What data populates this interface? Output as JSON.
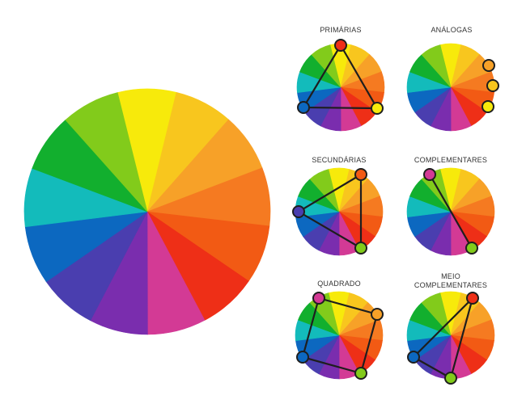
{
  "wheel_colors": [
    "#F7EA0B",
    "#F8C61E",
    "#F7A128",
    "#F57A21",
    "#F25A14",
    "#EE2F17",
    "#D33A95",
    "#7A2DAE",
    "#4A3EAF",
    "#0C68C0",
    "#13BBBB",
    "#12AF2E",
    "#82CB1B"
  ],
  "harmonies": [
    {
      "id": "primarias",
      "label": "PRIMÁRIAS",
      "handles": [
        0,
        4,
        8
      ],
      "shape": "polygon"
    },
    {
      "id": "analogas",
      "label": "ANÁLOGAS",
      "handles": [
        0,
        1,
        2
      ],
      "shape": "none"
    },
    {
      "id": "secundarias",
      "label": "SECUNDÁRIAS",
      "handles": [
        0,
        4,
        8
      ],
      "shape": "polygon"
    },
    {
      "id": "complementares",
      "label": "COMPLEMENTARES",
      "handles": [
        0,
        1
      ],
      "shape": "line"
    },
    {
      "id": "quadrado",
      "label": "QUADRADO",
      "handles": [
        0,
        1,
        2,
        3
      ],
      "shape": "polygon"
    },
    {
      "id": "meio-complementares",
      "label": [
        "MEIO",
        "COMPLEMENTARES"
      ],
      "handles": [
        0,
        1,
        2
      ],
      "shape": "polygon"
    }
  ],
  "handle_colors": {
    "primarias": [
      "#EE2F17",
      "#F7EA0B",
      "#0C68C0"
    ],
    "analogas": [
      "#F7A128",
      "#F8C61E",
      "#F7EA0B"
    ],
    "secundarias": [
      "#F25A14",
      "#82CB1B",
      "#4A3EAF"
    ],
    "complementares": [
      "#D33A95",
      "#82CB1B"
    ],
    "quadrado": [
      "#D33A95",
      "#F7A128",
      "#82CB1B",
      "#0C68C0"
    ],
    "meio-complementares": [
      "#EE2F17",
      "#82CB1B",
      "#0C68C0"
    ]
  }
}
